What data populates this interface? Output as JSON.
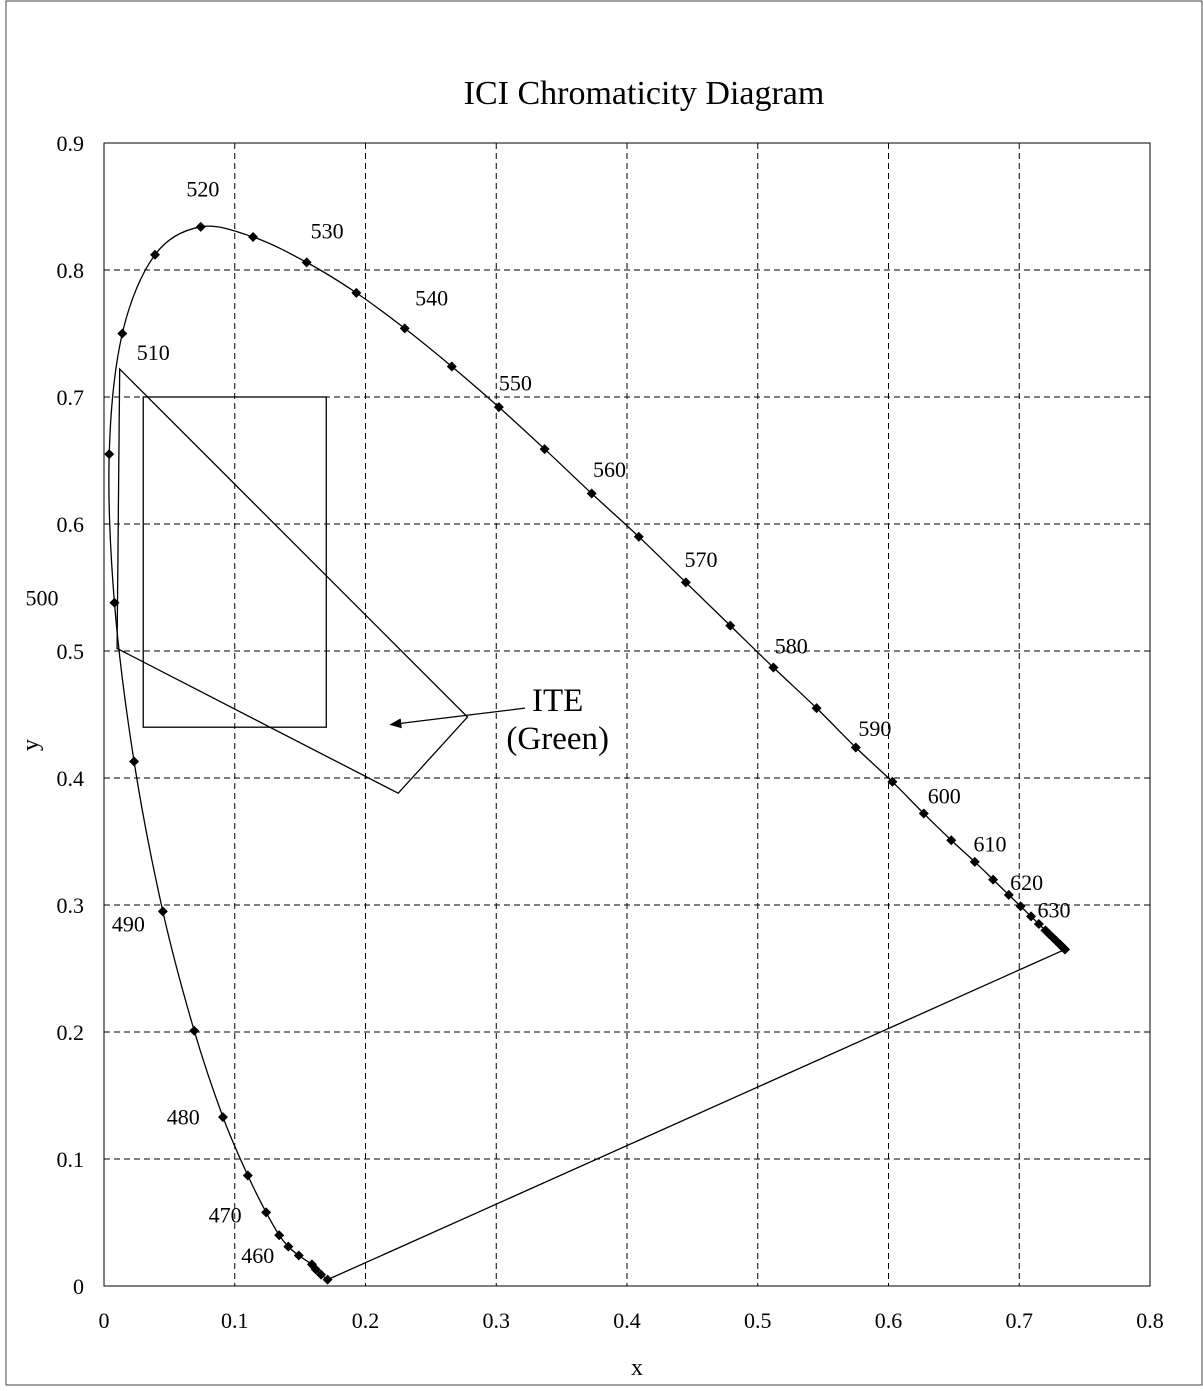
{
  "chart_data": {
    "type": "scatter",
    "title": "ICI Chromaticity Diagram",
    "xlabel": "x",
    "ylabel": "y",
    "xlim": [
      0,
      0.8
    ],
    "ylim": [
      0,
      0.9
    ],
    "xticks": [
      "0",
      "0.1",
      "0.2",
      "0.3",
      "0.4",
      "0.5",
      "0.6",
      "0.7",
      "0.8"
    ],
    "yticks": [
      "0",
      "0.1",
      "0.2",
      "0.3",
      "0.4",
      "0.5",
      "0.6",
      "0.7",
      "0.8",
      "0.9"
    ],
    "grid": true,
    "spectral_locus": [
      [
        0.171,
        0.005
      ],
      [
        0.166,
        0.009
      ],
      [
        0.162,
        0.013
      ],
      [
        0.159,
        0.017
      ],
      [
        0.149,
        0.024
      ],
      [
        0.141,
        0.031
      ],
      [
        0.134,
        0.04
      ],
      [
        0.124,
        0.058
      ],
      [
        0.11,
        0.087
      ],
      [
        0.091,
        0.133
      ],
      [
        0.069,
        0.201
      ],
      [
        0.045,
        0.295
      ],
      [
        0.023,
        0.413
      ],
      [
        0.008,
        0.538
      ],
      [
        0.004,
        0.655
      ],
      [
        0.014,
        0.75
      ],
      [
        0.039,
        0.812
      ],
      [
        0.074,
        0.834
      ],
      [
        0.114,
        0.826
      ],
      [
        0.155,
        0.806
      ],
      [
        0.193,
        0.782
      ],
      [
        0.23,
        0.754
      ],
      [
        0.266,
        0.724
      ],
      [
        0.302,
        0.692
      ],
      [
        0.337,
        0.659
      ],
      [
        0.373,
        0.624
      ],
      [
        0.409,
        0.59
      ],
      [
        0.445,
        0.554
      ],
      [
        0.479,
        0.52
      ],
      [
        0.512,
        0.487
      ],
      [
        0.545,
        0.455
      ],
      [
        0.575,
        0.424
      ],
      [
        0.603,
        0.397
      ],
      [
        0.627,
        0.372
      ],
      [
        0.648,
        0.351
      ],
      [
        0.666,
        0.334
      ],
      [
        0.68,
        0.32
      ],
      [
        0.692,
        0.308
      ],
      [
        0.701,
        0.299
      ],
      [
        0.709,
        0.291
      ],
      [
        0.715,
        0.285
      ],
      [
        0.72,
        0.28
      ],
      [
        0.723,
        0.277
      ],
      [
        0.726,
        0.274
      ],
      [
        0.728,
        0.272
      ],
      [
        0.73,
        0.27
      ],
      [
        0.731,
        0.269
      ],
      [
        0.732,
        0.268
      ],
      [
        0.733,
        0.267
      ],
      [
        0.734,
        0.266
      ],
      [
        0.735,
        0.265
      ]
    ],
    "purple_line": [
      [
        0.171,
        0.005
      ],
      [
        0.735,
        0.265
      ]
    ],
    "wavelength_labels": [
      {
        "text": "460",
        "x": 0.105,
        "y": 0.018
      },
      {
        "text": "470",
        "x": 0.08,
        "y": 0.05
      },
      {
        "text": "480",
        "x": 0.048,
        "y": 0.127
      },
      {
        "text": "490",
        "x": 0.006,
        "y": 0.279
      },
      {
        "text": "500",
        "x": -0.06,
        "y": 0.536
      },
      {
        "text": "510",
        "x": 0.025,
        "y": 0.729
      },
      {
        "text": "520",
        "x": 0.063,
        "y": 0.858
      },
      {
        "text": "530",
        "x": 0.158,
        "y": 0.825
      },
      {
        "text": "540",
        "x": 0.238,
        "y": 0.772
      },
      {
        "text": "550",
        "x": 0.302,
        "y": 0.705
      },
      {
        "text": "560",
        "x": 0.374,
        "y": 0.637
      },
      {
        "text": "570",
        "x": 0.444,
        "y": 0.566
      },
      {
        "text": "580",
        "x": 0.513,
        "y": 0.498
      },
      {
        "text": "590",
        "x": 0.577,
        "y": 0.433
      },
      {
        "text": "600",
        "x": 0.63,
        "y": 0.38
      },
      {
        "text": "610",
        "x": 0.665,
        "y": 0.342
      },
      {
        "text": "620",
        "x": 0.693,
        "y": 0.312
      },
      {
        "text": "630",
        "x": 0.714,
        "y": 0.29
      }
    ],
    "ite_rectangle": {
      "x0": 0.03,
      "x1": 0.17,
      "y0": 0.44,
      "y1": 0.7
    },
    "ite_quadrilateral": [
      [
        0.012,
        0.722
      ],
      [
        0.278,
        0.448
      ],
      [
        0.225,
        0.388
      ],
      [
        0.01,
        0.502
      ]
    ],
    "annotation": {
      "lines": [
        "ITE",
        "(Green)"
      ],
      "text_at": [
        0.347,
        0.44
      ],
      "arrow_from": [
        0.322,
        0.455
      ],
      "arrow_to": [
        0.219,
        0.442
      ]
    }
  }
}
